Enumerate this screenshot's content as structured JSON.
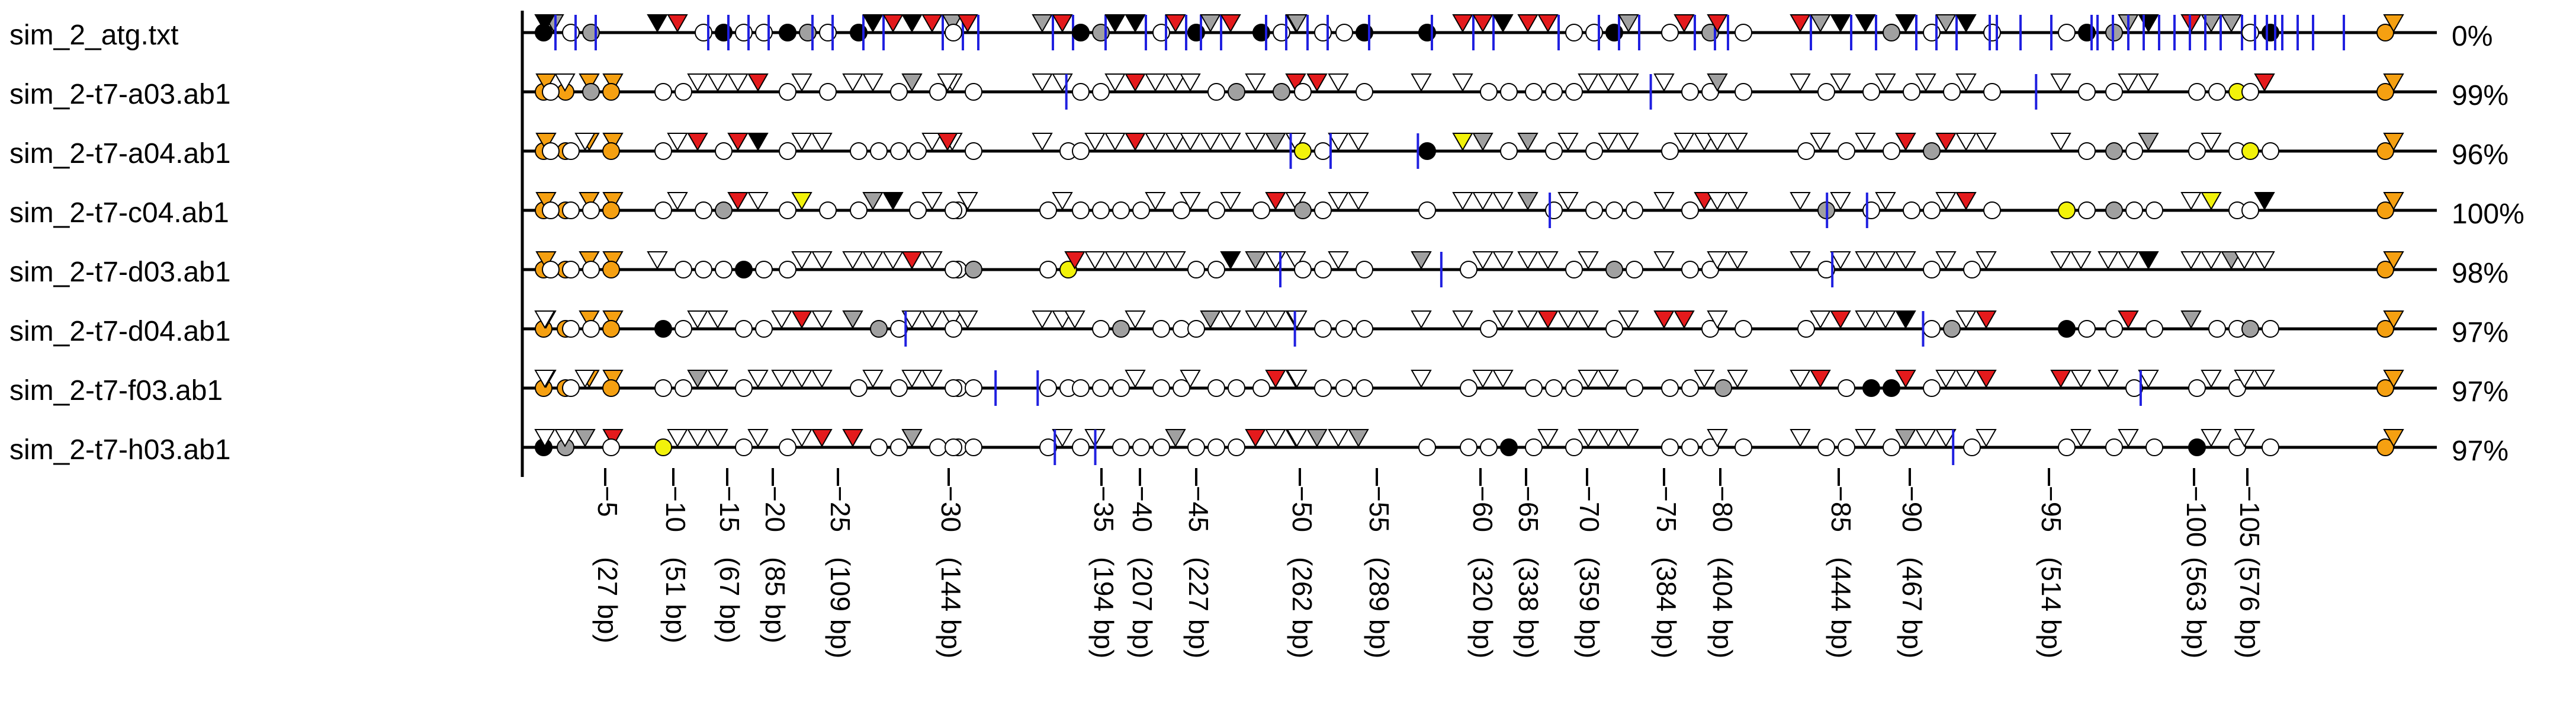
{
  "labels": [
    "sim_2_atg.txt",
    "sim_2-t7-a03.ab1",
    "sim_2-t7-a04.ab1",
    "sim_2-t7-c04.ab1",
    "sim_2-t7-d03.ab1",
    "sim_2-t7-d04.ab1",
    "sim_2-t7-f03.ab1",
    "sim_2-t7-h03.ab1"
  ],
  "percents": [
    "0%",
    "99%",
    "96%",
    "100%",
    "98%",
    "97%",
    "97%",
    "97%"
  ],
  "axis": {
    "ticks": [
      {
        "num": "−5",
        "bp": "(27 bp)"
      },
      {
        "num": "−10",
        "bp": "(51 bp)"
      },
      {
        "num": "−15",
        "bp": "(67 bp)"
      },
      {
        "num": "−20",
        "bp": "(85 bp)"
      },
      {
        "num": "−25",
        "bp": "(109 bp)"
      },
      {
        "num": "−30",
        "bp": "(144 bp)"
      },
      {
        "num": "−35",
        "bp": "(194 bp)"
      },
      {
        "num": "−40",
        "bp": "(207 bp)"
      },
      {
        "num": "−45",
        "bp": "(227 bp)"
      },
      {
        "num": "−50",
        "bp": "(262 bp)"
      },
      {
        "num": "−55",
        "bp": "(289 bp)"
      },
      {
        "num": "−60",
        "bp": "(320 bp)"
      },
      {
        "num": "−65",
        "bp": "(338 bp)"
      },
      {
        "num": "−70",
        "bp": "(359 bp)"
      },
      {
        "num": "−75",
        "bp": "(384 bp)"
      },
      {
        "num": "−80",
        "bp": "(404 bp)"
      },
      {
        "num": "−85",
        "bp": "(444 bp)"
      },
      {
        "num": "−90",
        "bp": "(467 bp)"
      },
      {
        "num": "−95",
        "bp": "(514 bp)"
      },
      {
        "num": "−100",
        "bp": "(563 bp)"
      },
      {
        "num": "−105",
        "bp": "(576 bp)"
      }
    ]
  },
  "colors": {
    "orange": "#f5a011",
    "red": "#e41a1c",
    "gray": "#a0a0a0",
    "yellow": "#f2f20a",
    "black": "#000000",
    "blue": "#2020e0",
    "white": "#ffffff"
  }
}
